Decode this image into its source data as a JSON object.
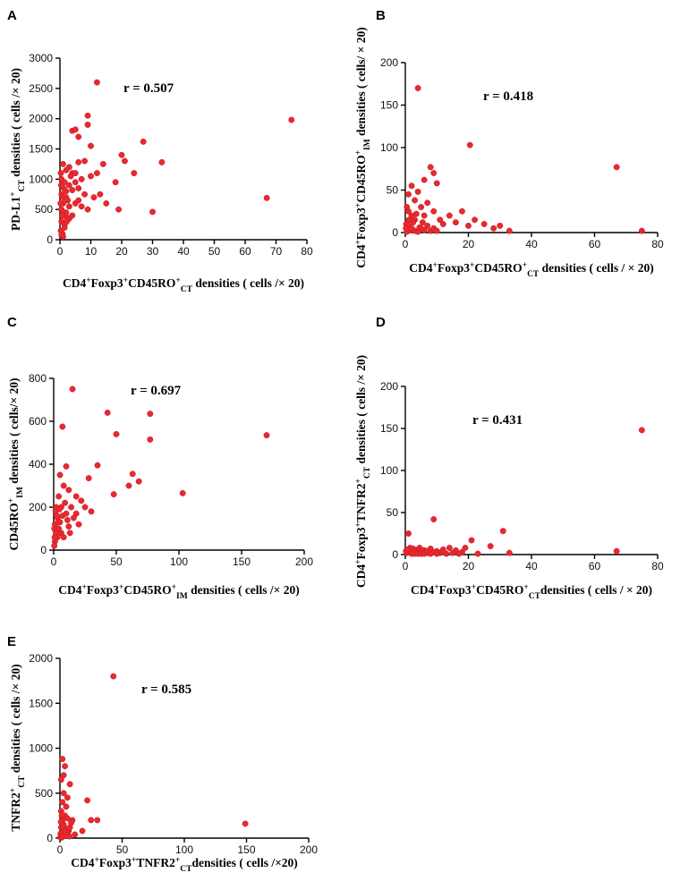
{
  "chart_data": [
    {
      "id": "A",
      "type": "scatter",
      "panel_label": "A",
      "annotation": "r = 0.507",
      "xlabel": [
        {
          "t": "CD4"
        },
        {
          "t": "+",
          "s": "sup"
        },
        {
          "t": "Foxp3"
        },
        {
          "t": "+",
          "s": "sup"
        },
        {
          "t": "CD45RO"
        },
        {
          "t": "+",
          "s": "sup"
        },
        {
          "t": "CT",
          "s": "sub"
        },
        {
          "t": " densities ( cells /× 20)"
        }
      ],
      "ylabel": [
        {
          "t": "PD-L1"
        },
        {
          "t": "+",
          "s": "sup"
        },
        {
          "t": "CT",
          "s": "sub"
        },
        {
          "t": " densities ( cells /×  20)"
        }
      ],
      "xlim": [
        0,
        80
      ],
      "ylim": [
        0,
        3000
      ],
      "xticks": [
        "0",
        "10",
        "20",
        "30",
        "40",
        "50",
        "60",
        "70",
        "80"
      ],
      "yticks": [
        "0",
        "500",
        "1000",
        "1500",
        "2000",
        "2500",
        "3000"
      ],
      "xtick_values": [
        0,
        10,
        20,
        30,
        40,
        50,
        60,
        70,
        80
      ],
      "ytick_values": [
        0,
        500,
        1000,
        1500,
        2000,
        2500,
        3000
      ],
      "points": [
        [
          12,
          2600
        ],
        [
          9,
          2050
        ],
        [
          75,
          1980
        ],
        [
          9,
          1900
        ],
        [
          4,
          1800
        ],
        [
          5,
          1820
        ],
        [
          27,
          1620
        ],
        [
          10,
          1550
        ],
        [
          20,
          1400
        ],
        [
          21,
          1300
        ],
        [
          33,
          1280
        ],
        [
          14,
          1250
        ],
        [
          6,
          1280
        ],
        [
          8,
          1300
        ],
        [
          3,
          1200
        ],
        [
          1,
          1250
        ],
        [
          2,
          1150
        ],
        [
          4,
          1100
        ],
        [
          5,
          1100
        ],
        [
          7,
          1000
        ],
        [
          10,
          1050
        ],
        [
          12,
          1100
        ],
        [
          24,
          1100
        ],
        [
          0.5,
          1000
        ],
        [
          1.5,
          950
        ],
        [
          3,
          900
        ],
        [
          4,
          820
        ],
        [
          6,
          850
        ],
        [
          11,
          700
        ],
        [
          13,
          750
        ],
        [
          18,
          950
        ],
        [
          2,
          800
        ],
        [
          0.5,
          750
        ],
        [
          1,
          700
        ],
        [
          2,
          700
        ],
        [
          67,
          690
        ],
        [
          5,
          600
        ],
        [
          7,
          550
        ],
        [
          9,
          500
        ],
        [
          15,
          600
        ],
        [
          19,
          500
        ],
        [
          30,
          460
        ],
        [
          1,
          600
        ],
        [
          3,
          550
        ],
        [
          0.5,
          500
        ],
        [
          2,
          450
        ],
        [
          4,
          400
        ],
        [
          1,
          400
        ],
        [
          0.5,
          300
        ],
        [
          1.5,
          250
        ],
        [
          2,
          380
        ],
        [
          0.3,
          150
        ],
        [
          0.8,
          100
        ],
        [
          1,
          50
        ],
        [
          0.5,
          80
        ],
        [
          1.5,
          200
        ],
        [
          3,
          350
        ],
        [
          6,
          650
        ],
        [
          8,
          750
        ],
        [
          0.2,
          600
        ],
        [
          1.2,
          850
        ],
        [
          2.5,
          650
        ],
        [
          3.5,
          1050
        ],
        [
          0.4,
          900
        ],
        [
          5,
          950
        ],
        [
          6,
          1700
        ],
        [
          0.3,
          1100
        ],
        [
          0.7,
          400
        ],
        [
          2.2,
          300
        ]
      ]
    },
    {
      "id": "B",
      "type": "scatter",
      "panel_label": "B",
      "annotation": "r = 0.418",
      "xlabel": [
        {
          "t": "CD4"
        },
        {
          "t": "+",
          "s": "sup"
        },
        {
          "t": "Foxp3"
        },
        {
          "t": "+",
          "s": "sup"
        },
        {
          "t": "CD45RO"
        },
        {
          "t": "+",
          "s": "sup"
        },
        {
          "t": "CT",
          "s": "sub"
        },
        {
          "t": " densities ( cells / × 20)"
        }
      ],
      "ylabel": [
        {
          "t": "CD4"
        },
        {
          "t": "+",
          "s": "sup"
        },
        {
          "t": "Foxp3"
        },
        {
          "t": "+",
          "s": "sup"
        },
        {
          "t": "CD45RO"
        },
        {
          "t": "+",
          "s": "sup"
        },
        {
          "t": "IM",
          "s": "sub"
        },
        {
          "t": " densities ( cells/ × 20)"
        }
      ],
      "xlim": [
        0,
        80
      ],
      "ylim": [
        0,
        200
      ],
      "xticks": [
        "0",
        "20",
        "40",
        "60",
        "80"
      ],
      "yticks": [
        "0",
        "50",
        "100",
        "150",
        "200"
      ],
      "xtick_values": [
        0,
        20,
        40,
        60,
        80
      ],
      "ytick_values": [
        0,
        50,
        100,
        150,
        200
      ],
      "points": [
        [
          4,
          170
        ],
        [
          20.5,
          103
        ],
        [
          67,
          77
        ],
        [
          8,
          77
        ],
        [
          9,
          70
        ],
        [
          6,
          62
        ],
        [
          10,
          58
        ],
        [
          2,
          55
        ],
        [
          4,
          48
        ],
        [
          1,
          45
        ],
        [
          18,
          25
        ],
        [
          14,
          20
        ],
        [
          3,
          38
        ],
        [
          5,
          30
        ],
        [
          7,
          35
        ],
        [
          0.5,
          30
        ],
        [
          1,
          25
        ],
        [
          2,
          20
        ],
        [
          3,
          15
        ],
        [
          6,
          20
        ],
        [
          9,
          25
        ],
        [
          11,
          15
        ],
        [
          12,
          10
        ],
        [
          16,
          12
        ],
        [
          20,
          8
        ],
        [
          22,
          15
        ],
        [
          25,
          10
        ],
        [
          28,
          5
        ],
        [
          30,
          8
        ],
        [
          33,
          2
        ],
        [
          75,
          2
        ],
        [
          0.3,
          10
        ],
        [
          1,
          8
        ],
        [
          1.5,
          3
        ],
        [
          2,
          5
        ],
        [
          3,
          2
        ],
        [
          4,
          1
        ],
        [
          5,
          5
        ],
        [
          6,
          3
        ],
        [
          7,
          8
        ],
        [
          8,
          2
        ],
        [
          9,
          5
        ],
        [
          10,
          2
        ],
        [
          0.5,
          1
        ],
        [
          2.5,
          12
        ],
        [
          4.5,
          6
        ],
        [
          0.2,
          5
        ],
        [
          1.2,
          15
        ],
        [
          3.5,
          22
        ],
        [
          5.5,
          12
        ]
      ]
    },
    {
      "id": "C",
      "type": "scatter",
      "panel_label": "C",
      "annotation": "r = 0.697",
      "xlabel": [
        {
          "t": "CD4"
        },
        {
          "t": "+",
          "s": "sup"
        },
        {
          "t": "Foxp3"
        },
        {
          "t": "+",
          "s": "sup"
        },
        {
          "t": "CD45RO"
        },
        {
          "t": "+",
          "s": "sup"
        },
        {
          "t": "IM",
          "s": "sub"
        },
        {
          "t": " densities ( cells /× 20)"
        }
      ],
      "ylabel": [
        {
          "t": "CD45RO"
        },
        {
          "t": "+",
          "s": "sup"
        },
        {
          "t": "IM",
          "s": "sub"
        },
        {
          "t": " densities ( cells/× 20)"
        }
      ],
      "xlim": [
        0,
        200
      ],
      "ylim": [
        0,
        800
      ],
      "xticks": [
        "0",
        "50",
        "100",
        "150",
        "200"
      ],
      "yticks": [
        "0",
        "200",
        "400",
        "600",
        "800"
      ],
      "xtick_values": [
        0,
        50,
        100,
        150,
        200
      ],
      "ytick_values": [
        0,
        200,
        400,
        600,
        800
      ],
      "points": [
        [
          15,
          750
        ],
        [
          43,
          640
        ],
        [
          77,
          635
        ],
        [
          7,
          575
        ],
        [
          50,
          540
        ],
        [
          170,
          535
        ],
        [
          77,
          515
        ],
        [
          35,
          395
        ],
        [
          63,
          355
        ],
        [
          10,
          390
        ],
        [
          28,
          335
        ],
        [
          60,
          300
        ],
        [
          68,
          320
        ],
        [
          48,
          260
        ],
        [
          103,
          265
        ],
        [
          5,
          350
        ],
        [
          8,
          300
        ],
        [
          12,
          280
        ],
        [
          18,
          250
        ],
        [
          22,
          230
        ],
        [
          25,
          200
        ],
        [
          30,
          180
        ],
        [
          4,
          250
        ],
        [
          6,
          200
        ],
        [
          9,
          220
        ],
        [
          14,
          200
        ],
        [
          16,
          150
        ],
        [
          20,
          120
        ],
        [
          13,
          80
        ],
        [
          2,
          200
        ],
        [
          3,
          150
        ],
        [
          1,
          120
        ],
        [
          0.5,
          100
        ],
        [
          2,
          80
        ],
        [
          3,
          60
        ],
        [
          1,
          40
        ],
        [
          0.5,
          20
        ],
        [
          4,
          100
        ],
        [
          5,
          130
        ],
        [
          7,
          160
        ],
        [
          10,
          170
        ],
        [
          11,
          140
        ],
        [
          12,
          110
        ],
        [
          6,
          80
        ],
        [
          8,
          60
        ],
        [
          1.5,
          180
        ],
        [
          2.5,
          160
        ],
        [
          0.8,
          60
        ],
        [
          3.5,
          130
        ],
        [
          4.5,
          190
        ],
        [
          18,
          170
        ]
      ]
    },
    {
      "id": "D",
      "type": "scatter",
      "panel_label": "D",
      "annotation": "r = 0.431",
      "xlabel": [
        {
          "t": "CD4"
        },
        {
          "t": "+",
          "s": "sup"
        },
        {
          "t": "Foxp3"
        },
        {
          "t": "+",
          "s": "sup"
        },
        {
          "t": "CD45RO"
        },
        {
          "t": "+",
          "s": "sup"
        },
        {
          "t": "CT",
          "s": "sub"
        },
        {
          "t": "densities ( cells / × 20)"
        }
      ],
      "ylabel": [
        {
          "t": "CD4"
        },
        {
          "t": "+",
          "s": "sup"
        },
        {
          "t": "Foxp3"
        },
        {
          "t": "+",
          "s": "sup"
        },
        {
          "t": "TNFR2"
        },
        {
          "t": "+",
          "s": "sup"
        },
        {
          "t": "CT",
          "s": "sub"
        },
        {
          "t": " densities ( cells /×  20)"
        }
      ],
      "xlim": [
        0,
        80
      ],
      "ylim": [
        0,
        200
      ],
      "xticks": [
        "0",
        "20",
        "40",
        "60",
        "80"
      ],
      "yticks": [
        "0",
        "50",
        "100",
        "150",
        "200"
      ],
      "xtick_values": [
        0,
        20,
        40,
        60,
        80
      ],
      "ytick_values": [
        0,
        50,
        100,
        150,
        200
      ],
      "points": [
        [
          75,
          148
        ],
        [
          9,
          42
        ],
        [
          31,
          28
        ],
        [
          1,
          25
        ],
        [
          21,
          17
        ],
        [
          27,
          10
        ],
        [
          19,
          8
        ],
        [
          14,
          8
        ],
        [
          16,
          5
        ],
        [
          12,
          6
        ],
        [
          10,
          4
        ],
        [
          8,
          7
        ],
        [
          6,
          5
        ],
        [
          5,
          3
        ],
        [
          4,
          6
        ],
        [
          3,
          4
        ],
        [
          2,
          5
        ],
        [
          1,
          3
        ],
        [
          0.5,
          2
        ],
        [
          7,
          2
        ],
        [
          9,
          3
        ],
        [
          11,
          2
        ],
        [
          13,
          1
        ],
        [
          15,
          2
        ],
        [
          18,
          3
        ],
        [
          23,
          1
        ],
        [
          33,
          2
        ],
        [
          67,
          4
        ],
        [
          2.5,
          7
        ],
        [
          3.5,
          2
        ],
        [
          4.5,
          8
        ],
        [
          5.5,
          5
        ],
        [
          6.5,
          3
        ],
        [
          1.5,
          8
        ],
        [
          0.2,
          4
        ],
        [
          0.8,
          6
        ],
        [
          2,
          1
        ],
        [
          3,
          1
        ],
        [
          4,
          1
        ],
        [
          5,
          1
        ],
        [
          6,
          1
        ],
        [
          7,
          4
        ],
        [
          8,
          1
        ],
        [
          10,
          1
        ],
        [
          12,
          3
        ],
        [
          17,
          1
        ]
      ]
    },
    {
      "id": "E",
      "type": "scatter",
      "panel_label": "E",
      "annotation": "r = 0.585",
      "xlabel": [
        {
          "t": "CD4"
        },
        {
          "t": "+",
          "s": "sup"
        },
        {
          "t": "Foxp3"
        },
        {
          "t": "+",
          "s": "sup"
        },
        {
          "t": "TNFR2"
        },
        {
          "t": "+",
          "s": "sup"
        },
        {
          "t": "CT",
          "s": "sub"
        },
        {
          "t": "densities ( cells /×20)"
        }
      ],
      "ylabel": [
        {
          "t": "TNFR2"
        },
        {
          "t": "+",
          "s": "sup"
        },
        {
          "t": "CT",
          "s": "sub"
        },
        {
          "t": " densities ( cells /× 20)"
        }
      ],
      "xlim": [
        0,
        200
      ],
      "ylim": [
        0,
        2000
      ],
      "xticks": [
        "0",
        "50",
        "100",
        "150",
        "200"
      ],
      "yticks": [
        "0",
        "500",
        "1000",
        "1500",
        "2000"
      ],
      "xtick_values": [
        0,
        50,
        100,
        150,
        200
      ],
      "ytick_values": [
        0,
        500,
        1000,
        1500,
        2000
      ],
      "points": [
        [
          43,
          1800
        ],
        [
          2,
          880
        ],
        [
          4,
          800
        ],
        [
          3,
          700
        ],
        [
          1,
          650
        ],
        [
          8,
          600
        ],
        [
          3,
          500
        ],
        [
          6,
          450
        ],
        [
          22,
          420
        ],
        [
          2,
          400
        ],
        [
          5,
          350
        ],
        [
          1,
          300
        ],
        [
          4,
          250
        ],
        [
          2,
          200
        ],
        [
          6,
          220
        ],
        [
          10,
          200
        ],
        [
          25,
          200
        ],
        [
          30,
          200
        ],
        [
          149,
          160
        ],
        [
          3,
          150
        ],
        [
          1,
          120
        ],
        [
          5,
          100
        ],
        [
          7,
          80
        ],
        [
          18,
          80
        ],
        [
          2,
          60
        ],
        [
          4,
          40
        ],
        [
          1,
          20
        ],
        [
          0.5,
          50
        ],
        [
          3,
          30
        ],
        [
          6,
          60
        ],
        [
          8,
          120
        ],
        [
          9,
          170
        ],
        [
          0.8,
          180
        ],
        [
          1.5,
          250
        ],
        [
          2.5,
          130
        ],
        [
          3.5,
          90
        ],
        [
          4.5,
          70
        ],
        [
          0.3,
          10
        ],
        [
          1.2,
          5
        ],
        [
          2.2,
          15
        ],
        [
          5.5,
          30
        ],
        [
          7.5,
          20
        ],
        [
          12,
          40
        ]
      ]
    }
  ]
}
